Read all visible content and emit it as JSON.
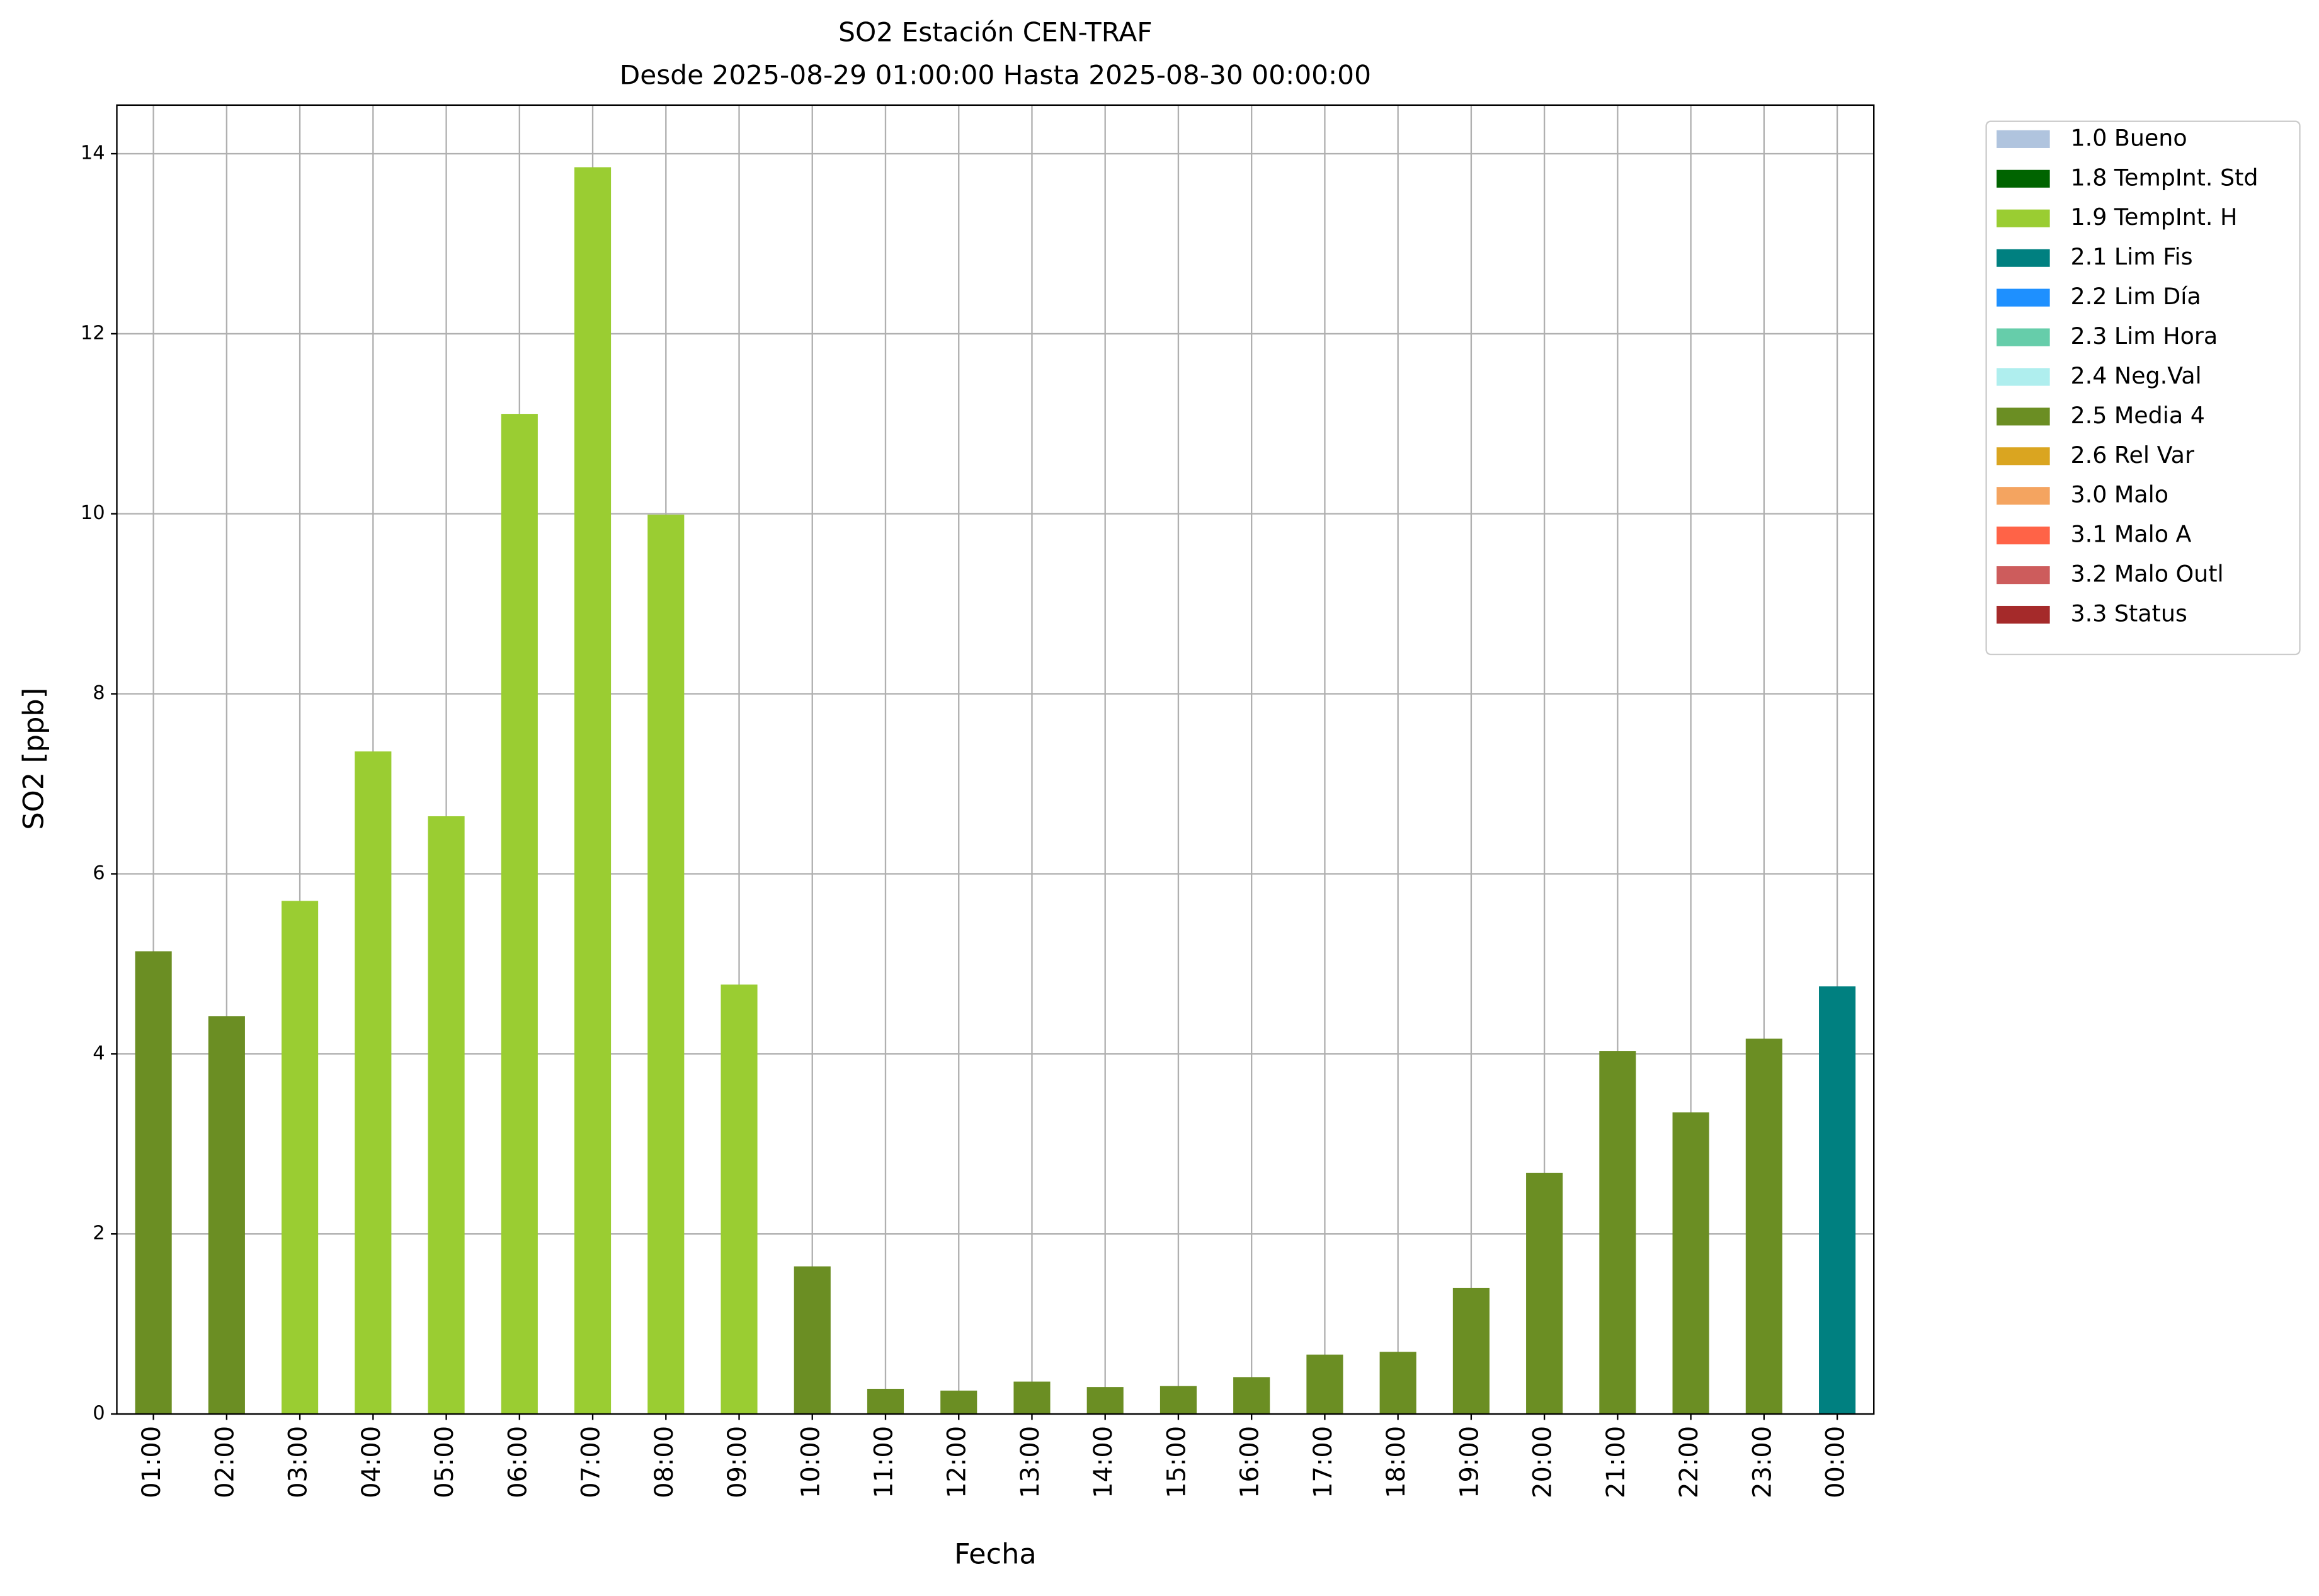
{
  "chart_data": {
    "type": "bar",
    "title": "SO2 Estación CEN-TRAF",
    "subtitle": "Desde 2025-08-29 01:00:00 Hasta 2025-08-30 00:00:00",
    "x_label": "Fecha",
    "y_label": "SO2 [ppb]",
    "categories": [
      "01:00",
      "02:00",
      "03:00",
      "04:00",
      "05:00",
      "06:00",
      "07:00",
      "08:00",
      "09:00",
      "10:00",
      "11:00",
      "12:00",
      "13:00",
      "14:00",
      "15:00",
      "16:00",
      "17:00",
      "18:00",
      "19:00",
      "20:00",
      "21:00",
      "22:00",
      "23:00",
      "00:00"
    ],
    "ylim": [
      0,
      14.54
    ],
    "yticks": [
      0,
      2,
      4,
      6,
      8,
      10,
      12,
      14
    ],
    "grid": true,
    "legend": "outside-upper-right",
    "series": [
      {
        "name": "1.0 Bueno",
        "color": "#b0c4de",
        "values": [
          null,
          null,
          null,
          null,
          null,
          null,
          null,
          null,
          null,
          null,
          null,
          null,
          null,
          null,
          null,
          null,
          null,
          null,
          null,
          null,
          null,
          null,
          null,
          null
        ]
      },
      {
        "name": "1.8 TempInt. Std",
        "color": "#006400",
        "values": [
          null,
          null,
          null,
          null,
          null,
          null,
          null,
          null,
          null,
          null,
          null,
          null,
          null,
          null,
          null,
          null,
          null,
          null,
          null,
          null,
          null,
          null,
          null,
          null
        ]
      },
      {
        "name": "1.9 TempInt. H",
        "color": "#9acd32",
        "values": [
          null,
          null,
          5.7,
          7.36,
          6.64,
          11.11,
          13.85,
          9.99,
          4.77,
          null,
          null,
          null,
          null,
          null,
          null,
          null,
          null,
          null,
          null,
          null,
          null,
          null,
          null,
          null
        ]
      },
      {
        "name": "2.1 Lim Fis",
        "color": "#008080",
        "values": [
          null,
          null,
          null,
          null,
          null,
          null,
          null,
          null,
          null,
          null,
          null,
          null,
          null,
          null,
          null,
          null,
          null,
          null,
          null,
          null,
          null,
          null,
          null,
          4.75
        ]
      },
      {
        "name": "2.2 Lim Día",
        "color": "#1e90ff",
        "values": [
          null,
          null,
          null,
          null,
          null,
          null,
          null,
          null,
          null,
          null,
          null,
          null,
          null,
          null,
          null,
          null,
          null,
          null,
          null,
          null,
          null,
          null,
          null,
          null
        ]
      },
      {
        "name": "2.3 Lim Hora",
        "color": "#66cdaa",
        "values": [
          null,
          null,
          null,
          null,
          null,
          null,
          null,
          null,
          null,
          null,
          null,
          null,
          null,
          null,
          null,
          null,
          null,
          null,
          null,
          null,
          null,
          null,
          null,
          null
        ]
      },
      {
        "name": "2.4 Neg.Val",
        "color": "#afeeee",
        "values": [
          null,
          null,
          null,
          null,
          null,
          null,
          null,
          null,
          null,
          null,
          null,
          null,
          null,
          null,
          null,
          null,
          null,
          null,
          null,
          null,
          null,
          null,
          null,
          null
        ]
      },
      {
        "name": "2.5 Media 4",
        "color": "#6b8e23",
        "values": [
          5.14,
          4.42,
          null,
          null,
          null,
          null,
          null,
          null,
          null,
          1.64,
          0.28,
          0.26,
          0.36,
          0.3,
          0.31,
          0.41,
          0.66,
          0.69,
          1.4,
          2.68,
          4.03,
          3.35,
          4.17,
          null
        ]
      },
      {
        "name": "2.6 Rel Var",
        "color": "#daa520",
        "values": [
          null,
          null,
          null,
          null,
          null,
          null,
          null,
          null,
          null,
          null,
          null,
          null,
          null,
          null,
          null,
          null,
          null,
          null,
          null,
          null,
          null,
          null,
          null,
          null
        ]
      },
      {
        "name": "3.0 Malo",
        "color": "#f4a460",
        "values": [
          null,
          null,
          null,
          null,
          null,
          null,
          null,
          null,
          null,
          null,
          null,
          null,
          null,
          null,
          null,
          null,
          null,
          null,
          null,
          null,
          null,
          null,
          null,
          null
        ]
      },
      {
        "name": "3.1 Malo A",
        "color": "#ff6347",
        "values": [
          null,
          null,
          null,
          null,
          null,
          null,
          null,
          null,
          null,
          null,
          null,
          null,
          null,
          null,
          null,
          null,
          null,
          null,
          null,
          null,
          null,
          null,
          null,
          null
        ]
      },
      {
        "name": "3.2 Malo Outl",
        "color": "#cd5c5c",
        "values": [
          null,
          null,
          null,
          null,
          null,
          null,
          null,
          null,
          null,
          null,
          null,
          null,
          null,
          null,
          null,
          null,
          null,
          null,
          null,
          null,
          null,
          null,
          null,
          null
        ]
      },
      {
        "name": "3.3 Status",
        "color": "#a52a2a",
        "values": [
          null,
          null,
          null,
          null,
          null,
          null,
          null,
          null,
          null,
          null,
          null,
          null,
          null,
          null,
          null,
          null,
          null,
          null,
          null,
          null,
          null,
          null,
          null,
          null
        ]
      }
    ]
  }
}
